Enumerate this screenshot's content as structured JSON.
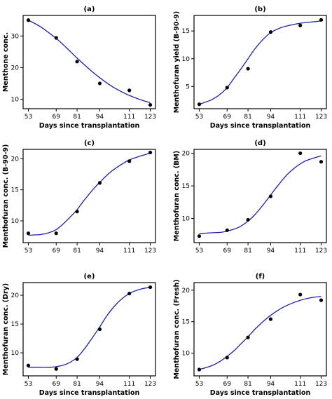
{
  "figure": {
    "frame_color": "#000000",
    "curve_color": "#1f1fa8",
    "point_color": "#000000"
  },
  "chart_data": [
    {
      "panel": "(a)",
      "type": "scatter",
      "title": "(a)",
      "xlabel": "Days since transplantation",
      "ylabel": "Menthone conc.",
      "x_ticks": [
        53,
        69,
        81,
        94,
        111,
        123
      ],
      "y_ticks": [
        10,
        20,
        30
      ],
      "xlim": [
        50,
        126
      ],
      "ylim": [
        7,
        36.5
      ],
      "points": [
        [
          53,
          35.0
        ],
        [
          69,
          29.4
        ],
        [
          81,
          21.9
        ],
        [
          94,
          15.0
        ],
        [
          111,
          12.8
        ],
        [
          123,
          8.2
        ]
      ],
      "fit_curve": [
        [
          53,
          35.0
        ],
        [
          60,
          32.9
        ],
        [
          69,
          29.2
        ],
        [
          75,
          26.2
        ],
        [
          81,
          23.0
        ],
        [
          88,
          19.5
        ],
        [
          94,
          16.8
        ],
        [
          100,
          14.4
        ],
        [
          106,
          12.5
        ],
        [
          111,
          11.2
        ],
        [
          117,
          9.9
        ],
        [
          123,
          8.9
        ]
      ]
    },
    {
      "panel": "(b)",
      "type": "scatter",
      "title": "(b)",
      "xlabel": "Days since transplantation",
      "ylabel": "Menthofuran yield (B-90-9)",
      "x_ticks": [
        53,
        69,
        81,
        94,
        111,
        123
      ],
      "y_ticks": [
        5,
        10,
        15
      ],
      "xlim": [
        50,
        126
      ],
      "ylim": [
        1.0,
        17.8
      ],
      "points": [
        [
          53,
          1.8
        ],
        [
          69,
          4.8
        ],
        [
          81,
          8.2
        ],
        [
          94,
          14.8
        ],
        [
          111,
          16.0
        ],
        [
          123,
          17.0
        ]
      ],
      "fit_curve": [
        [
          53,
          1.8
        ],
        [
          60,
          2.6
        ],
        [
          65,
          3.6
        ],
        [
          69,
          4.8
        ],
        [
          73,
          6.5
        ],
        [
          77,
          8.2
        ],
        [
          81,
          10.0
        ],
        [
          85,
          11.8
        ],
        [
          90,
          13.6
        ],
        [
          94,
          14.7
        ],
        [
          100,
          15.6
        ],
        [
          106,
          16.1
        ],
        [
          111,
          16.4
        ],
        [
          117,
          16.6
        ],
        [
          123,
          16.8
        ]
      ]
    },
    {
      "panel": "(c)",
      "type": "scatter",
      "title": "(c)",
      "xlabel": "",
      "ylabel": "Menthofuran conc. (B-90-9)",
      "x_ticks": [
        53,
        69,
        81,
        94,
        111,
        123
      ],
      "y_ticks": [
        10,
        15,
        20
      ],
      "xlim": [
        50,
        126
      ],
      "ylim": [
        6.5,
        21.5
      ],
      "points": [
        [
          53,
          8.0
        ],
        [
          69,
          8.0
        ],
        [
          81,
          11.5
        ],
        [
          94,
          16.1
        ],
        [
          111,
          19.6
        ],
        [
          123,
          21.0
        ]
      ],
      "fit_curve": [
        [
          53,
          7.7
        ],
        [
          60,
          7.8
        ],
        [
          65,
          8.1
        ],
        [
          69,
          8.6
        ],
        [
          73,
          9.5
        ],
        [
          77,
          10.6
        ],
        [
          81,
          11.8
        ],
        [
          85,
          13.3
        ],
        [
          90,
          15.0
        ],
        [
          94,
          16.2
        ],
        [
          100,
          17.8
        ],
        [
          106,
          19.0
        ],
        [
          111,
          19.8
        ],
        [
          117,
          20.4
        ],
        [
          123,
          20.9
        ]
      ]
    },
    {
      "panel": "(d)",
      "type": "scatter",
      "title": "(d)",
      "xlabel": "",
      "ylabel": "Menthofuran conc. (BM)",
      "x_ticks": [
        53,
        69,
        81,
        94,
        111,
        123
      ],
      "y_ticks": [
        10,
        15,
        20
      ],
      "xlim": [
        50,
        126
      ],
      "ylim": [
        6.3,
        20.6
      ],
      "points": [
        [
          53,
          7.3
        ],
        [
          69,
          8.2
        ],
        [
          81,
          9.8
        ],
        [
          94,
          13.4
        ],
        [
          111,
          20.0
        ],
        [
          123,
          18.7
        ]
      ],
      "fit_curve": [
        [
          53,
          7.7
        ],
        [
          60,
          7.8
        ],
        [
          66,
          7.9
        ],
        [
          71,
          8.2
        ],
        [
          76,
          8.7
        ],
        [
          81,
          9.6
        ],
        [
          85,
          10.6
        ],
        [
          90,
          12.2
        ],
        [
          94,
          13.6
        ],
        [
          98,
          15.0
        ],
        [
          103,
          16.6
        ],
        [
          108,
          17.8
        ],
        [
          113,
          18.7
        ],
        [
          118,
          19.2
        ],
        [
          123,
          19.6
        ]
      ]
    },
    {
      "panel": "(e)",
      "type": "scatter",
      "title": "(e)",
      "xlabel": "Days since transplantation",
      "ylabel": "Menthofuran conc. (Dry)",
      "x_ticks": [
        53,
        69,
        81,
        94,
        111,
        123
      ],
      "y_ticks": [
        10,
        15,
        20
      ],
      "xlim": [
        50,
        126
      ],
      "ylim": [
        6.0,
        22.2
      ],
      "points": [
        [
          53,
          7.8
        ],
        [
          69,
          7.2
        ],
        [
          81,
          8.9
        ],
        [
          94,
          14.1
        ],
        [
          111,
          20.3
        ],
        [
          123,
          21.4
        ]
      ],
      "fit_curve": [
        [
          53,
          7.5
        ],
        [
          60,
          7.5
        ],
        [
          66,
          7.5
        ],
        [
          71,
          7.7
        ],
        [
          76,
          8.2
        ],
        [
          81,
          9.2
        ],
        [
          85,
          10.6
        ],
        [
          89,
          12.3
        ],
        [
          94,
          14.5
        ],
        [
          98,
          16.4
        ],
        [
          103,
          18.3
        ],
        [
          108,
          19.7
        ],
        [
          113,
          20.6
        ],
        [
          118,
          21.1
        ],
        [
          123,
          21.4
        ]
      ]
    },
    {
      "panel": "(f)",
      "type": "scatter",
      "title": "(f)",
      "xlabel": "Days since transplantation",
      "ylabel": "Menthofuran conc. (Fresh)",
      "x_ticks": [
        53,
        69,
        81,
        94,
        111,
        123
      ],
      "y_ticks": [
        10,
        15,
        20
      ],
      "xlim": [
        50,
        126
      ],
      "ylim": [
        6.4,
        21.2
      ],
      "points": [
        [
          53,
          7.4
        ],
        [
          69,
          9.3
        ],
        [
          81,
          12.5
        ],
        [
          94,
          15.4
        ],
        [
          111,
          19.3
        ],
        [
          123,
          18.4
        ]
      ],
      "fit_curve": [
        [
          53,
          7.4
        ],
        [
          60,
          8.0
        ],
        [
          65,
          8.7
        ],
        [
          69,
          9.5
        ],
        [
          73,
          10.4
        ],
        [
          77,
          11.5
        ],
        [
          81,
          12.6
        ],
        [
          85,
          13.8
        ],
        [
          90,
          15.1
        ],
        [
          94,
          16.0
        ],
        [
          100,
          17.1
        ],
        [
          106,
          17.9
        ],
        [
          111,
          18.4
        ],
        [
          117,
          18.8
        ],
        [
          123,
          19.0
        ]
      ]
    }
  ]
}
